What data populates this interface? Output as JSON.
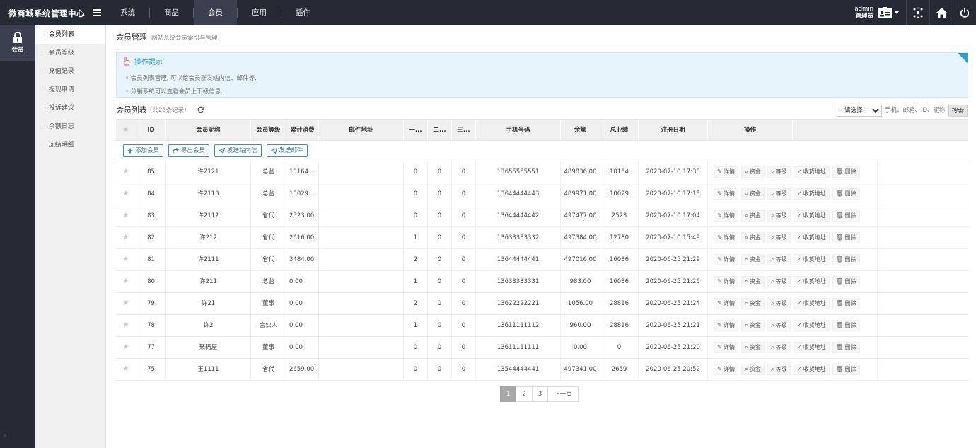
{
  "app": {
    "title": "微商城系统管理中心"
  },
  "topnav": [
    "系统",
    "商品",
    "会员",
    "应用",
    "插件"
  ],
  "topnav_active": 2,
  "user": {
    "name": "admin",
    "role": "管理员"
  },
  "leftcol": {
    "label": "会员"
  },
  "sidebar": {
    "items": [
      "会员列表",
      "会员等级",
      "充值记录",
      "提现申请",
      "投诉建议",
      "余额日志",
      "冻结明细"
    ],
    "active": 0
  },
  "page": {
    "title": "会员管理",
    "subtitle": "网站系统会员索引与管理"
  },
  "tips": {
    "title": "操作提示",
    "lines": [
      "会员列表管理, 可以给会员群发站内信、邮件等.",
      "分销系统可以查看会员上下级信息."
    ]
  },
  "list": {
    "title": "会员列表",
    "count": "(共25条记录)"
  },
  "filter": {
    "select_value": "--请选择--",
    "placeholder": "手机、邮箱、ID、昵称",
    "search_label": "搜索"
  },
  "columns": [
    "ID",
    "会员昵称",
    "会员等级",
    "累计消费",
    "邮件地址",
    "一...",
    "二...",
    "三...",
    "手机号码",
    "余额",
    "总业绩",
    "注册日期",
    "操作"
  ],
  "actions": [
    "添加会员",
    "导出会员",
    "发送站内信",
    "发送邮件"
  ],
  "ops": [
    "详情",
    "资金",
    "等级",
    "收货地址",
    "删除"
  ],
  "rows": [
    [
      "85",
      "许2121",
      "总监",
      "10164....",
      "",
      "0",
      "0",
      "0",
      "13655555551",
      "489836.00",
      "10164",
      "2020-07-10 17:38"
    ],
    [
      "84",
      "许2113",
      "总监",
      "10029....",
      "",
      "0",
      "0",
      "0",
      "13644444443",
      "489971.00",
      "10029",
      "2020-07-10 17:15"
    ],
    [
      "83",
      "许2112",
      "省代",
      "2523.00",
      "",
      "0",
      "0",
      "0",
      "13644444442",
      "497477.00",
      "2523",
      "2020-07-10 17:04"
    ],
    [
      "82",
      "许212",
      "省代",
      "2616.00",
      "",
      "1",
      "0",
      "0",
      "13633333332",
      "497384.00",
      "12780",
      "2020-07-10 15:49"
    ],
    [
      "81",
      "许2111",
      "省代",
      "3484.00",
      "",
      "2",
      "0",
      "0",
      "13644444441",
      "497016.00",
      "16036",
      "2020-06-25 21:29"
    ],
    [
      "80",
      "许211",
      "总监",
      "0.00",
      "",
      "1",
      "0",
      "0",
      "13633333331",
      "983.00",
      "16036",
      "2020-06-25 21:26"
    ],
    [
      "79",
      "许21",
      "董事",
      "0.00",
      "",
      "2",
      "0",
      "0",
      "13622222221",
      "1056.00",
      "28816",
      "2020-06-25 21:24"
    ],
    [
      "78",
      "许2",
      "合伙人",
      "0.00",
      "",
      "1",
      "0",
      "0",
      "13611111112",
      "960.00",
      "28816",
      "2020-06-25 21:21"
    ],
    [
      "77",
      "聚码屋",
      "董事",
      "0.00",
      "",
      "0",
      "0",
      "0",
      "13611111111",
      "0.00",
      "0",
      "2020-06-25 21:20"
    ],
    [
      "75",
      "王1111",
      "省代",
      "2659.00",
      "",
      "0",
      "0",
      "0",
      "13544444441",
      "497341.00",
      "2659",
      "2020-06-25 20:52"
    ]
  ],
  "pager": {
    "pages": [
      "1",
      "2",
      "3"
    ],
    "active": 0,
    "next": "下一页"
  }
}
